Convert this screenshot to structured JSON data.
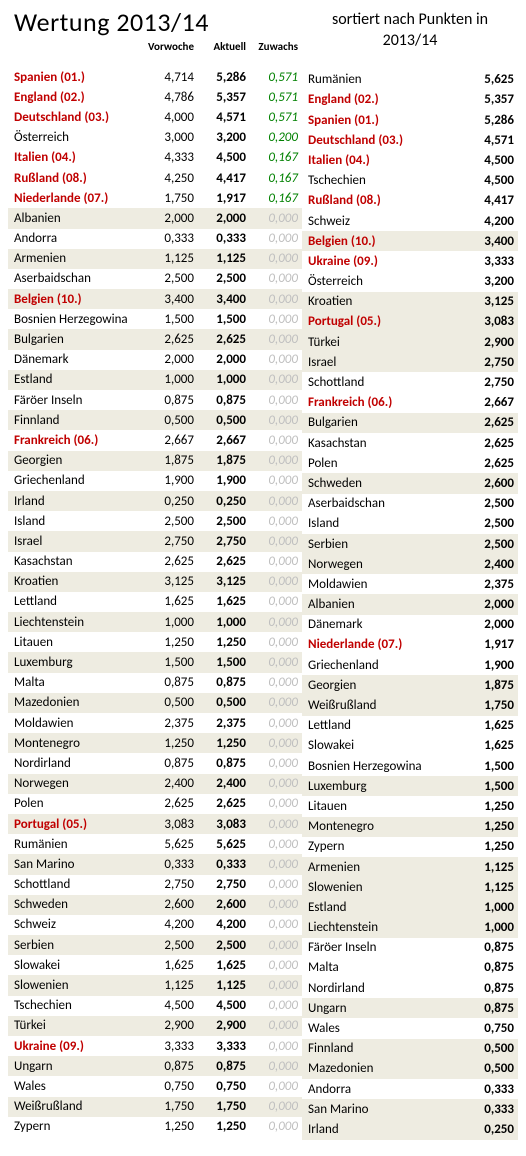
{
  "title_left": "Wertung 2013/14",
  "title_right_l1": "sortiert nach Punkten in",
  "title_right_l2": "2013/14",
  "headers": {
    "prev": "Vorwoche",
    "curr": "Aktuell",
    "diff": "Zuwachs"
  },
  "colors": {
    "red": "#c00000",
    "green": "#008000",
    "gray": "#bfbfbf",
    "shade": "#eeece1",
    "text": "#000000",
    "bg": "#ffffff"
  },
  "left_rows": [
    {
      "country": "Spanien (01.)",
      "prev": "4,714",
      "curr": "5,286",
      "diff": "0,571",
      "red": true,
      "green": true,
      "shade": false
    },
    {
      "country": "England (02.)",
      "prev": "4,786",
      "curr": "5,357",
      "diff": "0,571",
      "red": true,
      "green": true,
      "shade": false
    },
    {
      "country": "Deutschland (03.)",
      "prev": "4,000",
      "curr": "4,571",
      "diff": "0,571",
      "red": true,
      "green": true,
      "shade": false
    },
    {
      "country": "Österreich",
      "prev": "3,000",
      "curr": "3,200",
      "diff": "0,200",
      "red": false,
      "green": true,
      "shade": false
    },
    {
      "country": "Italien (04.)",
      "prev": "4,333",
      "curr": "4,500",
      "diff": "0,167",
      "red": true,
      "green": true,
      "shade": false
    },
    {
      "country": "Rußland (08.)",
      "prev": "4,250",
      "curr": "4,417",
      "diff": "0,167",
      "red": true,
      "green": true,
      "shade": false
    },
    {
      "country": "Niederlande (07.)",
      "prev": "1,750",
      "curr": "1,917",
      "diff": "0,167",
      "red": true,
      "green": true,
      "shade": false
    },
    {
      "country": "Albanien",
      "prev": "2,000",
      "curr": "2,000",
      "diff": "0,000",
      "red": false,
      "green": false,
      "shade": true
    },
    {
      "country": "Andorra",
      "prev": "0,333",
      "curr": "0,333",
      "diff": "0,000",
      "red": false,
      "green": false,
      "shade": false
    },
    {
      "country": "Armenien",
      "prev": "1,125",
      "curr": "1,125",
      "diff": "0,000",
      "red": false,
      "green": false,
      "shade": true
    },
    {
      "country": "Aserbaidschan",
      "prev": "2,500",
      "curr": "2,500",
      "diff": "0,000",
      "red": false,
      "green": false,
      "shade": false
    },
    {
      "country": "Belgien (10.)",
      "prev": "3,400",
      "curr": "3,400",
      "diff": "0,000",
      "red": true,
      "green": false,
      "shade": true
    },
    {
      "country": "Bosnien Herzegowina",
      "prev": "1,500",
      "curr": "1,500",
      "diff": "0,000",
      "red": false,
      "green": false,
      "shade": false
    },
    {
      "country": "Bulgarien",
      "prev": "2,625",
      "curr": "2,625",
      "diff": "0,000",
      "red": false,
      "green": false,
      "shade": true
    },
    {
      "country": "Dänemark",
      "prev": "2,000",
      "curr": "2,000",
      "diff": "0,000",
      "red": false,
      "green": false,
      "shade": false
    },
    {
      "country": "Estland",
      "prev": "1,000",
      "curr": "1,000",
      "diff": "0,000",
      "red": false,
      "green": false,
      "shade": true
    },
    {
      "country": "Färöer Inseln",
      "prev": "0,875",
      "curr": "0,875",
      "diff": "0,000",
      "red": false,
      "green": false,
      "shade": false
    },
    {
      "country": "Finnland",
      "prev": "0,500",
      "curr": "0,500",
      "diff": "0,000",
      "red": false,
      "green": false,
      "shade": true
    },
    {
      "country": "Frankreich (06.)",
      "prev": "2,667",
      "curr": "2,667",
      "diff": "0,000",
      "red": true,
      "green": false,
      "shade": false
    },
    {
      "country": "Georgien",
      "prev": "1,875",
      "curr": "1,875",
      "diff": "0,000",
      "red": false,
      "green": false,
      "shade": true
    },
    {
      "country": "Griechenland",
      "prev": "1,900",
      "curr": "1,900",
      "diff": "0,000",
      "red": false,
      "green": false,
      "shade": false
    },
    {
      "country": "Irland",
      "prev": "0,250",
      "curr": "0,250",
      "diff": "0,000",
      "red": false,
      "green": false,
      "shade": true
    },
    {
      "country": "Island",
      "prev": "2,500",
      "curr": "2,500",
      "diff": "0,000",
      "red": false,
      "green": false,
      "shade": false
    },
    {
      "country": "Israel",
      "prev": "2,750",
      "curr": "2,750",
      "diff": "0,000",
      "red": false,
      "green": false,
      "shade": true
    },
    {
      "country": "Kasachstan",
      "prev": "2,625",
      "curr": "2,625",
      "diff": "0,000",
      "red": false,
      "green": false,
      "shade": false
    },
    {
      "country": "Kroatien",
      "prev": "3,125",
      "curr": "3,125",
      "diff": "0,000",
      "red": false,
      "green": false,
      "shade": true
    },
    {
      "country": "Lettland",
      "prev": "1,625",
      "curr": "1,625",
      "diff": "0,000",
      "red": false,
      "green": false,
      "shade": false
    },
    {
      "country": "Liechtenstein",
      "prev": "1,000",
      "curr": "1,000",
      "diff": "0,000",
      "red": false,
      "green": false,
      "shade": true
    },
    {
      "country": "Litauen",
      "prev": "1,250",
      "curr": "1,250",
      "diff": "0,000",
      "red": false,
      "green": false,
      "shade": false
    },
    {
      "country": "Luxemburg",
      "prev": "1,500",
      "curr": "1,500",
      "diff": "0,000",
      "red": false,
      "green": false,
      "shade": true
    },
    {
      "country": "Malta",
      "prev": "0,875",
      "curr": "0,875",
      "diff": "0,000",
      "red": false,
      "green": false,
      "shade": false
    },
    {
      "country": "Mazedonien",
      "prev": "0,500",
      "curr": "0,500",
      "diff": "0,000",
      "red": false,
      "green": false,
      "shade": true
    },
    {
      "country": "Moldawien",
      "prev": "2,375",
      "curr": "2,375",
      "diff": "0,000",
      "red": false,
      "green": false,
      "shade": false
    },
    {
      "country": "Montenegro",
      "prev": "1,250",
      "curr": "1,250",
      "diff": "0,000",
      "red": false,
      "green": false,
      "shade": true
    },
    {
      "country": "Nordirland",
      "prev": "0,875",
      "curr": "0,875",
      "diff": "0,000",
      "red": false,
      "green": false,
      "shade": false
    },
    {
      "country": "Norwegen",
      "prev": "2,400",
      "curr": "2,400",
      "diff": "0,000",
      "red": false,
      "green": false,
      "shade": true
    },
    {
      "country": "Polen",
      "prev": "2,625",
      "curr": "2,625",
      "diff": "0,000",
      "red": false,
      "green": false,
      "shade": false
    },
    {
      "country": "Portugal (05.)",
      "prev": "3,083",
      "curr": "3,083",
      "diff": "0,000",
      "red": true,
      "green": false,
      "shade": true
    },
    {
      "country": "Rumänien",
      "prev": "5,625",
      "curr": "5,625",
      "diff": "0,000",
      "red": false,
      "green": false,
      "shade": false
    },
    {
      "country": "San Marino",
      "prev": "0,333",
      "curr": "0,333",
      "diff": "0,000",
      "red": false,
      "green": false,
      "shade": true
    },
    {
      "country": "Schottland",
      "prev": "2,750",
      "curr": "2,750",
      "diff": "0,000",
      "red": false,
      "green": false,
      "shade": false
    },
    {
      "country": "Schweden",
      "prev": "2,600",
      "curr": "2,600",
      "diff": "0,000",
      "red": false,
      "green": false,
      "shade": true
    },
    {
      "country": "Schweiz",
      "prev": "4,200",
      "curr": "4,200",
      "diff": "0,000",
      "red": false,
      "green": false,
      "shade": false
    },
    {
      "country": "Serbien",
      "prev": "2,500",
      "curr": "2,500",
      "diff": "0,000",
      "red": false,
      "green": false,
      "shade": true
    },
    {
      "country": "Slowakei",
      "prev": "1,625",
      "curr": "1,625",
      "diff": "0,000",
      "red": false,
      "green": false,
      "shade": false
    },
    {
      "country": "Slowenien",
      "prev": "1,125",
      "curr": "1,125",
      "diff": "0,000",
      "red": false,
      "green": false,
      "shade": true
    },
    {
      "country": "Tschechien",
      "prev": "4,500",
      "curr": "4,500",
      "diff": "0,000",
      "red": false,
      "green": false,
      "shade": false
    },
    {
      "country": "Türkei",
      "prev": "2,900",
      "curr": "2,900",
      "diff": "0,000",
      "red": false,
      "green": false,
      "shade": true
    },
    {
      "country": "Ukraine (09.)",
      "prev": "3,333",
      "curr": "3,333",
      "diff": "0,000",
      "red": true,
      "green": false,
      "shade": false
    },
    {
      "country": "Ungarn",
      "prev": "0,875",
      "curr": "0,875",
      "diff": "0,000",
      "red": false,
      "green": false,
      "shade": true
    },
    {
      "country": "Wales",
      "prev": "0,750",
      "curr": "0,750",
      "diff": "0,000",
      "red": false,
      "green": false,
      "shade": false
    },
    {
      "country": "Weißrußland",
      "prev": "1,750",
      "curr": "1,750",
      "diff": "0,000",
      "red": false,
      "green": false,
      "shade": true
    },
    {
      "country": "Zypern",
      "prev": "1,250",
      "curr": "1,250",
      "diff": "0,000",
      "red": false,
      "green": false,
      "shade": false
    }
  ],
  "right_rows": [
    {
      "country": "Rumänien",
      "val": "5,625",
      "red": false,
      "shade": false
    },
    {
      "country": "England (02.)",
      "val": "5,357",
      "red": true,
      "shade": false
    },
    {
      "country": "Spanien (01.)",
      "val": "5,286",
      "red": true,
      "shade": false
    },
    {
      "country": "Deutschland (03.)",
      "val": "4,571",
      "red": true,
      "shade": false
    },
    {
      "country": "Italien (04.)",
      "val": "4,500",
      "red": true,
      "shade": false
    },
    {
      "country": "Tschechien",
      "val": "4,500",
      "red": false,
      "shade": false
    },
    {
      "country": "Rußland (08.)",
      "val": "4,417",
      "red": true,
      "shade": false
    },
    {
      "country": "Schweiz",
      "val": "4,200",
      "red": false,
      "shade": false
    },
    {
      "country": "Belgien (10.)",
      "val": "3,400",
      "red": true,
      "shade": true
    },
    {
      "country": "Ukraine (09.)",
      "val": "3,333",
      "red": true,
      "shade": false
    },
    {
      "country": "Österreich",
      "val": "3,200",
      "red": false,
      "shade": false
    },
    {
      "country": "Kroatien",
      "val": "3,125",
      "red": false,
      "shade": true
    },
    {
      "country": "Portugal (05.)",
      "val": "3,083",
      "red": true,
      "shade": true
    },
    {
      "country": "Türkei",
      "val": "2,900",
      "red": false,
      "shade": true
    },
    {
      "country": "Israel",
      "val": "2,750",
      "red": false,
      "shade": true
    },
    {
      "country": "Schottland",
      "val": "2,750",
      "red": false,
      "shade": false
    },
    {
      "country": "Frankreich (06.)",
      "val": "2,667",
      "red": true,
      "shade": false
    },
    {
      "country": "Bulgarien",
      "val": "2,625",
      "red": false,
      "shade": true
    },
    {
      "country": "Kasachstan",
      "val": "2,625",
      "red": false,
      "shade": false
    },
    {
      "country": "Polen",
      "val": "2,625",
      "red": false,
      "shade": false
    },
    {
      "country": "Schweden",
      "val": "2,600",
      "red": false,
      "shade": true
    },
    {
      "country": "Aserbaidschan",
      "val": "2,500",
      "red": false,
      "shade": false
    },
    {
      "country": "Island",
      "val": "2,500",
      "red": false,
      "shade": false
    },
    {
      "country": "Serbien",
      "val": "2,500",
      "red": false,
      "shade": true
    },
    {
      "country": "Norwegen",
      "val": "2,400",
      "red": false,
      "shade": true
    },
    {
      "country": "Moldawien",
      "val": "2,375",
      "red": false,
      "shade": false
    },
    {
      "country": "Albanien",
      "val": "2,000",
      "red": false,
      "shade": true
    },
    {
      "country": "Dänemark",
      "val": "2,000",
      "red": false,
      "shade": false
    },
    {
      "country": "Niederlande (07.)",
      "val": "1,917",
      "red": true,
      "shade": false
    },
    {
      "country": "Griechenland",
      "val": "1,900",
      "red": false,
      "shade": false
    },
    {
      "country": "Georgien",
      "val": "1,875",
      "red": false,
      "shade": true
    },
    {
      "country": "Weißrußland",
      "val": "1,750",
      "red": false,
      "shade": true
    },
    {
      "country": "Lettland",
      "val": "1,625",
      "red": false,
      "shade": false
    },
    {
      "country": "Slowakei",
      "val": "1,625",
      "red": false,
      "shade": false
    },
    {
      "country": "Bosnien Herzegowina",
      "val": "1,500",
      "red": false,
      "shade": false
    },
    {
      "country": "Luxemburg",
      "val": "1,500",
      "red": false,
      "shade": true
    },
    {
      "country": "Litauen",
      "val": "1,250",
      "red": false,
      "shade": false
    },
    {
      "country": "Montenegro",
      "val": "1,250",
      "red": false,
      "shade": true
    },
    {
      "country": "Zypern",
      "val": "1,250",
      "red": false,
      "shade": false
    },
    {
      "country": "Armenien",
      "val": "1,125",
      "red": false,
      "shade": true
    },
    {
      "country": "Slowenien",
      "val": "1,125",
      "red": false,
      "shade": true
    },
    {
      "country": "Estland",
      "val": "1,000",
      "red": false,
      "shade": true
    },
    {
      "country": "Liechtenstein",
      "val": "1,000",
      "red": false,
      "shade": true
    },
    {
      "country": "Färöer Inseln",
      "val": "0,875",
      "red": false,
      "shade": false
    },
    {
      "country": "Malta",
      "val": "0,875",
      "red": false,
      "shade": false
    },
    {
      "country": "Nordirland",
      "val": "0,875",
      "red": false,
      "shade": false
    },
    {
      "country": "Ungarn",
      "val": "0,875",
      "red": false,
      "shade": true
    },
    {
      "country": "Wales",
      "val": "0,750",
      "red": false,
      "shade": false
    },
    {
      "country": "Finnland",
      "val": "0,500",
      "red": false,
      "shade": true
    },
    {
      "country": "Mazedonien",
      "val": "0,500",
      "red": false,
      "shade": true
    },
    {
      "country": "Andorra",
      "val": "0,333",
      "red": false,
      "shade": false
    },
    {
      "country": "San Marino",
      "val": "0,333",
      "red": false,
      "shade": true
    },
    {
      "country": "Irland",
      "val": "0,250",
      "red": false,
      "shade": true
    }
  ]
}
